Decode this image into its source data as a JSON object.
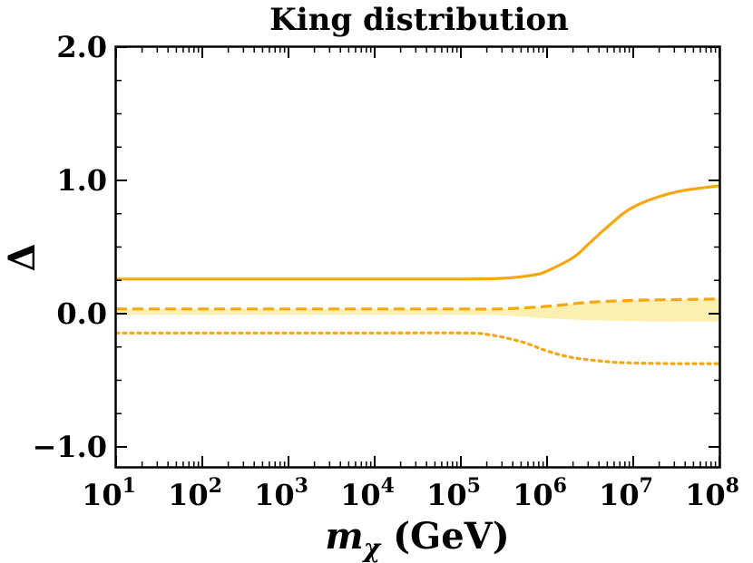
{
  "chart_data": {
    "type": "line",
    "title": "King distribution",
    "xlabel": {
      "symbol": "m",
      "subscript": "χ",
      "unit": "(GeV)"
    },
    "ylabel": "Δ",
    "x_scale": "log",
    "xlim": [
      10,
      100000000
    ],
    "ylim": [
      -1.15,
      2.0
    ],
    "x_ticks": [
      {
        "base": "10",
        "exp": "1"
      },
      {
        "base": "10",
        "exp": "2"
      },
      {
        "base": "10",
        "exp": "3"
      },
      {
        "base": "10",
        "exp": "4"
      },
      {
        "base": "10",
        "exp": "5"
      },
      {
        "base": "10",
        "exp": "6"
      },
      {
        "base": "10",
        "exp": "7"
      },
      {
        "base": "10",
        "exp": "8"
      }
    ],
    "y_ticks": [
      {
        "value": 2.0,
        "label": "2.0"
      },
      {
        "value": 1.0,
        "label": "1.0"
      },
      {
        "value": 0.0,
        "label": "0.0"
      },
      {
        "value": -1.0,
        "label": "−1.0"
      }
    ],
    "color": "#f5a70f",
    "band_color": "#fcefb2",
    "series": [
      {
        "style": "solid",
        "x": [
          10,
          100,
          1000,
          10000,
          100000,
          300000,
          700000,
          1000000,
          2000000,
          3000000,
          5000000,
          10000000,
          30000000,
          100000000
        ],
        "y": [
          0.26,
          0.26,
          0.26,
          0.26,
          0.26,
          0.265,
          0.29,
          0.32,
          0.42,
          0.52,
          0.65,
          0.8,
          0.91,
          0.96
        ]
      },
      {
        "style": "dashed",
        "x": [
          10,
          100,
          1000,
          10000,
          100000,
          300000,
          1000000,
          3000000,
          10000000,
          30000000,
          100000000
        ],
        "y": [
          0.035,
          0.035,
          0.035,
          0.035,
          0.035,
          0.036,
          0.055,
          0.085,
          0.1,
          0.105,
          0.11
        ]
      },
      {
        "style": "dotted",
        "x": [
          10,
          100,
          1000,
          10000,
          100000,
          200000,
          500000,
          1000000,
          2000000,
          5000000,
          10000000,
          30000000,
          100000000
        ],
        "y": [
          -0.145,
          -0.145,
          -0.145,
          -0.145,
          -0.145,
          -0.155,
          -0.21,
          -0.28,
          -0.33,
          -0.36,
          -0.37,
          -0.375,
          -0.375
        ]
      }
    ],
    "band": {
      "x": [
        10,
        100,
        1000,
        10000,
        100000,
        300000,
        1000000,
        3000000,
        10000000,
        30000000,
        100000000
      ],
      "upper": [
        0.035,
        0.035,
        0.035,
        0.035,
        0.035,
        0.036,
        0.055,
        0.085,
        0.1,
        0.105,
        0.11
      ],
      "lower": [
        -0.01,
        -0.01,
        -0.01,
        -0.01,
        -0.01,
        -0.012,
        -0.035,
        -0.05,
        -0.057,
        -0.06,
        -0.06
      ]
    }
  }
}
